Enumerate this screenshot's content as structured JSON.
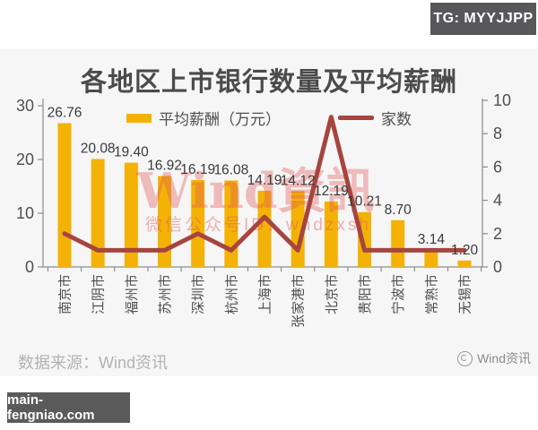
{
  "header": {
    "tg_badge": "TG: MYYJJPP"
  },
  "chart_data": {
    "type": "bar+line",
    "title": "各地区上市银行数量及平均薪酬",
    "categories": [
      "南京市",
      "江阴市",
      "福州市",
      "苏州市",
      "深圳市",
      "杭州市",
      "上海市",
      "张家港市",
      "北京市",
      "贵阳市",
      "宁波市",
      "常熟市",
      "无锡市"
    ],
    "series": [
      {
        "name": "平均薪酬（万元）",
        "type": "bar",
        "axis": "left",
        "color": "#f3b205",
        "values": [
          26.76,
          20.08,
          19.4,
          16.92,
          16.19,
          16.08,
          14.19,
          14.12,
          12.19,
          10.21,
          8.7,
          3.14,
          1.2
        ]
      },
      {
        "name": "家数",
        "type": "line",
        "axis": "right",
        "color": "#a6453f",
        "values": [
          2,
          1,
          1,
          1,
          2,
          1,
          3,
          1,
          9,
          1,
          1,
          1,
          1
        ]
      }
    ],
    "left_axis": {
      "ticks": [
        0,
        10,
        20,
        30
      ],
      "min": 0,
      "max": 30
    },
    "right_axis": {
      "ticks": [
        0,
        2,
        4,
        6,
        8,
        10
      ],
      "min": 0,
      "max": 10
    },
    "legend_position": "top",
    "grid": false
  },
  "watermark": {
    "line1": "Wind資訊",
    "line2": "微信公众号ID：wndzxsh"
  },
  "footer": {
    "source": "数据来源：Wind资讯",
    "brand": "Wind资讯",
    "site_badge": "main-fengniao.com"
  },
  "colors": {
    "bar": "#f3b205",
    "line": "#a6453f",
    "axis": "#8c8c8c",
    "tick_label": "#4f4f4f",
    "data_label": "#3a3a3a",
    "watermark": "#e25a5a",
    "panel_bg": "#f6f6f6"
  }
}
